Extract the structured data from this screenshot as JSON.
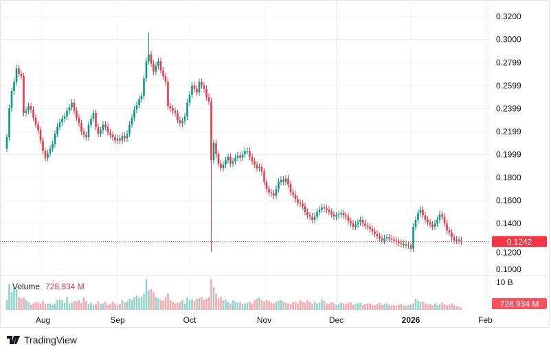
{
  "brand": {
    "name": "TradingView",
    "logo_icon": "tradingview-logo-icon"
  },
  "chart_data": {
    "type": "candlestick",
    "price_axis_ticks": [
      "0.3200",
      "0.3000",
      "0.2799",
      "0.2599",
      "0.2399",
      "0.2199",
      "0.1999",
      "0.1800",
      "0.1600",
      "0.1400",
      "0.1200",
      "0.1000"
    ],
    "price_range": [
      0.1,
      0.32
    ],
    "last_price_label": "0.1242",
    "last_price": 0.1242,
    "volume_label": "Volume",
    "volume_value": "728.934 M",
    "volume_axis_tick": "10 B",
    "volume_unit": "billions",
    "time_axis_ticks": [
      {
        "label": "Aug",
        "bold": false,
        "date": "2025-08-01"
      },
      {
        "label": "Sep",
        "bold": false,
        "date": "2025-09-01"
      },
      {
        "label": "Oct",
        "bold": false,
        "date": "2025-10-01"
      },
      {
        "label": "Nov",
        "bold": false,
        "date": "2025-11-01"
      },
      {
        "label": "Dec",
        "bold": false,
        "date": "2025-12-01"
      },
      {
        "label": "2026",
        "bold": true,
        "date": "2026-01-01"
      },
      {
        "label": "Feb",
        "bold": false,
        "date": "2026-02-01"
      }
    ],
    "grid": true,
    "colors": {
      "up": "#089981",
      "down": "#f23645",
      "up_volume": "#92d2c8",
      "down_volume": "#f7a9b0",
      "grid": "#f0f3fa",
      "text": "#131722"
    },
    "first_open": 0.205,
    "months": [
      {
        "month": "2025-07",
        "from_day": 17,
        "close": [
          0.215,
          0.24,
          0.255,
          0.263,
          0.275,
          0.27,
          0.268,
          0.236,
          0.238,
          0.242,
          0.239,
          0.232,
          0.226,
          0.221,
          0.212
        ],
        "volume": [
          3.2,
          8.0,
          5.5,
          7.0,
          6.5,
          4.0,
          3.5,
          3.8,
          3.0,
          2.5,
          1.5,
          2.0,
          2.5,
          2.2,
          2.0
        ]
      },
      {
        "month": "2025-08",
        "from_day": 1,
        "close": [
          0.203,
          0.197,
          0.201,
          0.205,
          0.209,
          0.218,
          0.224,
          0.228,
          0.231,
          0.233,
          0.238,
          0.241,
          0.245,
          0.238,
          0.232,
          0.227,
          0.22,
          0.217,
          0.215,
          0.226,
          0.231,
          0.236,
          0.224,
          0.218,
          0.221,
          0.226,
          0.224,
          0.219,
          0.217,
          0.215,
          0.212
        ],
        "volume": [
          2.8,
          1.8,
          1.9,
          1.7,
          1.5,
          2.0,
          3.0,
          3.2,
          3.0,
          2.2,
          4.0,
          2.0,
          2.2,
          2.8,
          2.6,
          3.0,
          2.2,
          3.8,
          2.8,
          1.8,
          2.2,
          1.6,
          1.8,
          2.6,
          1.9,
          2.0,
          2.5,
          1.5,
          1.7,
          2.6,
          2.0
        ]
      },
      {
        "month": "2025-09",
        "from_day": 1,
        "close": [
          0.214,
          0.212,
          0.216,
          0.214,
          0.218,
          0.226,
          0.232,
          0.239,
          0.243,
          0.248,
          0.251,
          0.266,
          0.281,
          0.287,
          0.279,
          0.272,
          0.277,
          0.281,
          0.273,
          0.268,
          0.263,
          0.242,
          0.24,
          0.238,
          0.236,
          0.23,
          0.227,
          0.229,
          0.233,
          0.245
        ],
        "volume": [
          1.6,
          1.8,
          3.0,
          2.3,
          2.6,
          3.5,
          3.0,
          4.0,
          4.5,
          3.6,
          4.0,
          5.0,
          9.5,
          6.0,
          6.5,
          5.5,
          4.0,
          3.5,
          3.0,
          2.8,
          4.0,
          5.0,
          3.0,
          2.5,
          2.0,
          2.2,
          2.4,
          3.0,
          2.0,
          3.8
        ]
      },
      {
        "month": "2025-10",
        "from_day": 1,
        "close": [
          0.252,
          0.26,
          0.257,
          0.254,
          0.263,
          0.26,
          0.257,
          0.25,
          0.246,
          0.195,
          0.21,
          0.2,
          0.192,
          0.188,
          0.191,
          0.195,
          0.198,
          0.192,
          0.194,
          0.197,
          0.199,
          0.197,
          0.2,
          0.203,
          0.203,
          0.198,
          0.194,
          0.191,
          0.188,
          0.189,
          0.185
        ],
        "volume": [
          3.0,
          3.2,
          2.8,
          3.5,
          3.6,
          4.0,
          3.0,
          3.5,
          4.0,
          9.5,
          7.0,
          5.0,
          3.5,
          4.0,
          3.0,
          3.2,
          2.5,
          2.0,
          3.0,
          2.6,
          2.2,
          2.4,
          1.8,
          2.0,
          2.2,
          2.5,
          2.0,
          3.0,
          3.5,
          3.8,
          3.0
        ]
      },
      {
        "month": "2025-11",
        "from_day": 1,
        "close": [
          0.176,
          0.17,
          0.167,
          0.166,
          0.164,
          0.17,
          0.176,
          0.178,
          0.176,
          0.179,
          0.174,
          0.167,
          0.165,
          0.161,
          0.158,
          0.157,
          0.155,
          0.15,
          0.147,
          0.146,
          0.143,
          0.146,
          0.15,
          0.152,
          0.154,
          0.153,
          0.152,
          0.15,
          0.148,
          0.146
        ],
        "volume": [
          2.6,
          3.0,
          2.8,
          2.2,
          2.0,
          2.5,
          2.8,
          3.0,
          2.6,
          2.2,
          2.0,
          1.8,
          2.4,
          2.6,
          2.0,
          3.0,
          2.5,
          2.2,
          3.0,
          2.4,
          1.8,
          2.6,
          2.0,
          2.2,
          3.2,
          2.8,
          2.0,
          1.8,
          2.4,
          2.0
        ]
      },
      {
        "month": "2025-12",
        "from_day": 1,
        "close": [
          0.147,
          0.148,
          0.149,
          0.147,
          0.146,
          0.142,
          0.14,
          0.137,
          0.139,
          0.141,
          0.143,
          0.14,
          0.138,
          0.137,
          0.135,
          0.133,
          0.131,
          0.129,
          0.127,
          0.125,
          0.127,
          0.128,
          0.127,
          0.126,
          0.125,
          0.124,
          0.123,
          0.122,
          0.122,
          0.121,
          0.121
        ],
        "volume": [
          1.6,
          1.8,
          2.2,
          2.0,
          1.8,
          2.2,
          2.4,
          1.6,
          1.8,
          2.0,
          2.2,
          1.5,
          1.7,
          1.9,
          2.0,
          1.6,
          1.5,
          1.8,
          2.2,
          1.5,
          1.7,
          2.0,
          1.6,
          1.4,
          1.5,
          1.3,
          1.6,
          1.8,
          1.4,
          1.2,
          1.5
        ]
      },
      {
        "month": "2026-01",
        "from_day": 1,
        "close": [
          0.118,
          0.137,
          0.143,
          0.149,
          0.152,
          0.147,
          0.143,
          0.141,
          0.139,
          0.137,
          0.14,
          0.143,
          0.148,
          0.146,
          0.14,
          0.134,
          0.132,
          0.128,
          0.125,
          0.126,
          0.125,
          0.1242
        ],
        "volume": [
          1.6,
          2.0,
          3.5,
          2.8,
          2.4,
          2.6,
          2.0,
          1.6,
          1.8,
          1.4,
          2.0,
          1.5,
          1.7,
          2.2,
          1.8,
          1.4,
          1.6,
          2.0,
          1.5,
          1.2,
          1.0,
          0.73
        ]
      }
    ],
    "extremes": [
      {
        "date": "2025-09-14",
        "high": 0.306
      },
      {
        "date": "2025-10-10",
        "low": 0.115
      }
    ]
  }
}
